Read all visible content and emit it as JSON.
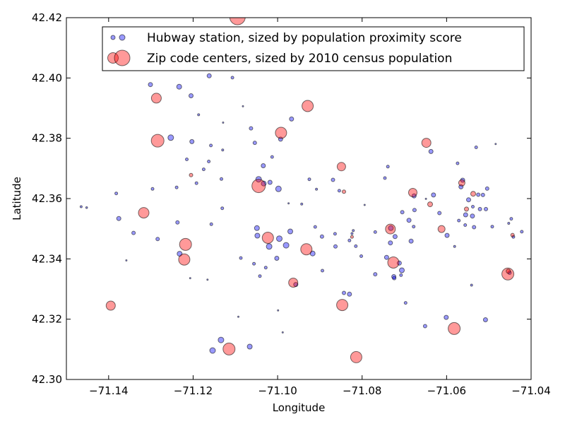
{
  "chart_data": {
    "type": "scatter",
    "xlabel": "Longitude",
    "ylabel": "Latitude",
    "xlim": [
      -71.15,
      -71.04
    ],
    "ylim": [
      42.3,
      42.42
    ],
    "grid": false,
    "legend_position": "top-right",
    "x_ticks": [
      "−71.14",
      "−71.12",
      "−71.10",
      "−71.08",
      "−71.06",
      "−71.04"
    ],
    "x_tick_values": [
      -71.14,
      -71.12,
      -71.1,
      -71.08,
      -71.06,
      -71.04
    ],
    "y_ticks": [
      "42.30",
      "42.32",
      "42.34",
      "42.36",
      "42.38",
      "42.40",
      "42.42"
    ],
    "y_tick_values": [
      42.3,
      42.32,
      42.34,
      42.36,
      42.38,
      42.4,
      42.42
    ],
    "series": [
      {
        "name": "Hubway station, sized by population proximity score",
        "color": "#0000ff",
        "points": [
          [
            -71.1465,
            42.3573,
            1.5
          ],
          [
            -71.1452,
            42.357,
            1.3
          ],
          [
            -71.1382,
            42.3617,
            2
          ],
          [
            -71.1376,
            42.3534,
            3
          ],
          [
            -71.1358,
            42.3395,
            1
          ],
          [
            -71.1341,
            42.3486,
            2.5
          ],
          [
            -71.1301,
            42.3978,
            3
          ],
          [
            -71.1296,
            42.3632,
            2
          ],
          [
            -71.1284,
            42.3466,
            2.5
          ],
          [
            -71.1268,
            42.4034,
            3
          ],
          [
            -71.1253,
            42.3802,
            4
          ],
          [
            -71.1239,
            42.3637,
            2
          ],
          [
            -71.1237,
            42.3521,
            2.5
          ],
          [
            -71.1233,
            42.3971,
            3.5
          ],
          [
            -71.1232,
            42.3417,
            3.5
          ],
          [
            -71.1215,
            42.373,
            2
          ],
          [
            -71.1207,
            42.3336,
            1
          ],
          [
            -71.1205,
            42.3941,
            3
          ],
          [
            -71.1203,
            42.3789,
            3
          ],
          [
            -71.1192,
            42.3651,
            2
          ],
          [
            -71.1187,
            42.3878,
            1.5
          ],
          [
            -71.1175,
            42.3697,
            2
          ],
          [
            -71.1166,
            42.3331,
            1
          ],
          [
            -71.1163,
            42.3723,
            2
          ],
          [
            -71.1162,
            42.4007,
            3
          ],
          [
            -71.1158,
            42.3776,
            2
          ],
          [
            -71.1157,
            42.3515,
            2
          ],
          [
            -71.1154,
            42.3096,
            4
          ],
          [
            -71.1134,
            42.3131,
            4
          ],
          [
            -71.1133,
            42.3665,
            2
          ],
          [
            -71.1131,
            42.3568,
            2
          ],
          [
            -71.113,
            42.3761,
            1.5
          ],
          [
            -71.1129,
            42.3852,
            1
          ],
          [
            -71.1107,
            42.4001,
            2
          ],
          [
            -71.1093,
            42.3208,
            1
          ],
          [
            -71.1087,
            42.3403,
            2
          ],
          [
            -71.1082,
            42.3906,
            1
          ],
          [
            -71.1066,
            42.3109,
            3.5
          ],
          [
            -71.1063,
            42.3833,
            2.5
          ],
          [
            -71.1056,
            42.3384,
            2
          ],
          [
            -71.1054,
            42.3785,
            2.5
          ],
          [
            -71.1049,
            42.3502,
            3.5
          ],
          [
            -71.1048,
            42.3477,
            3.5
          ],
          [
            -71.1045,
            42.3664,
            4
          ],
          [
            -71.1042,
            42.3343,
            2
          ],
          [
            -71.1034,
            42.3709,
            3
          ],
          [
            -71.1033,
            42.365,
            3.5
          ],
          [
            -71.1028,
            42.3371,
            2
          ],
          [
            -71.102,
            42.3441,
            4
          ],
          [
            -71.1018,
            42.3654,
            3
          ],
          [
            -71.1013,
            42.3738,
            2
          ],
          [
            -71.1002,
            42.3402,
            3
          ],
          [
            -71.0999,
            42.3229,
            1
          ],
          [
            -71.0998,
            42.3632,
            4
          ],
          [
            -71.0996,
            42.3467,
            4
          ],
          [
            -71.0993,
            42.3797,
            3
          ],
          [
            -71.0988,
            42.3156,
            1
          ],
          [
            -71.098,
            42.3445,
            4
          ],
          [
            -71.0974,
            42.3584,
            1
          ],
          [
            -71.097,
            42.3491,
            3.5
          ],
          [
            -71.0967,
            42.3864,
            3
          ],
          [
            -71.0957,
            42.3315,
            3
          ],
          [
            -71.0943,
            42.3582,
            1.5
          ],
          [
            -71.0925,
            42.3664,
            2
          ],
          [
            -71.0917,
            42.3418,
            3.5
          ],
          [
            -71.0911,
            42.3506,
            2
          ],
          [
            -71.0908,
            42.3631,
            1.5
          ],
          [
            -71.0895,
            42.3474,
            2.5
          ],
          [
            -71.0894,
            42.3361,
            2
          ],
          [
            -71.0869,
            42.3662,
            2.5
          ],
          [
            -71.0864,
            42.3483,
            2
          ],
          [
            -71.0863,
            42.3441,
            2.5
          ],
          [
            -71.0854,
            42.3626,
            2
          ],
          [
            -71.0843,
            42.3287,
            2.5
          ],
          [
            -71.083,
            42.3283,
            3
          ],
          [
            -71.083,
            42.3461,
            2
          ],
          [
            -71.0824,
            42.3484,
            1.5
          ],
          [
            -71.0821,
            42.3494,
            1.5
          ],
          [
            -71.0815,
            42.3442,
            2
          ],
          [
            -71.0802,
            42.3409,
            2
          ],
          [
            -71.0794,
            42.3579,
            1
          ],
          [
            -71.0769,
            42.3349,
            2.5
          ],
          [
            -71.0769,
            42.3489,
            2
          ],
          [
            -71.0746,
            42.3668,
            2
          ],
          [
            -71.0742,
            42.3405,
            3
          ],
          [
            -71.0739,
            42.3706,
            2
          ],
          [
            -71.0733,
            42.3453,
            3
          ],
          [
            -71.0732,
            42.3502,
            3.5
          ],
          [
            -71.0725,
            42.3341,
            3
          ],
          [
            -71.0724,
            42.3336,
            2.5
          ],
          [
            -71.0722,
            42.3474,
            3
          ],
          [
            -71.0712,
            42.3386,
            3
          ],
          [
            -71.0708,
            42.3346,
            2
          ],
          [
            -71.0706,
            42.3362,
            3.5
          ],
          [
            -71.0705,
            42.3555,
            2.5
          ],
          [
            -71.0697,
            42.3254,
            2
          ],
          [
            -71.0689,
            42.3528,
            3
          ],
          [
            -71.0684,
            42.3459,
            3
          ],
          [
            -71.0678,
            42.3507,
            2
          ],
          [
            -71.0677,
            42.3609,
            3
          ],
          [
            -71.0676,
            42.3562,
            2.5
          ],
          [
            -71.0651,
            42.3177,
            2.5
          ],
          [
            -71.0649,
            42.3599,
            1
          ],
          [
            -71.0637,
            42.3756,
            3
          ],
          [
            -71.0631,
            42.3612,
            3
          ],
          [
            -71.0617,
            42.3552,
            2.5
          ],
          [
            -71.0601,
            42.3206,
            3
          ],
          [
            -71.0599,
            42.3478,
            3
          ],
          [
            -71.0581,
            42.3441,
            1.5
          ],
          [
            -71.0574,
            42.3717,
            2
          ],
          [
            -71.0571,
            42.3527,
            2
          ],
          [
            -71.0566,
            42.3639,
            3
          ],
          [
            -71.0562,
            42.3661,
            3
          ],
          [
            -71.0556,
            42.3512,
            2
          ],
          [
            -71.0555,
            42.3546,
            3
          ],
          [
            -71.0548,
            42.3596,
            3
          ],
          [
            -71.0541,
            42.3313,
            1.5
          ],
          [
            -71.0539,
            42.3542,
            3
          ],
          [
            -71.0538,
            42.3573,
            2
          ],
          [
            -71.0535,
            42.3505,
            2.5
          ],
          [
            -71.053,
            42.377,
            2
          ],
          [
            -71.0525,
            42.3613,
            2.5
          ],
          [
            -71.0521,
            42.3565,
            2.5
          ],
          [
            -71.0514,
            42.3612,
            2.5
          ],
          [
            -71.0507,
            42.3565,
            2.5
          ],
          [
            -71.0508,
            42.3198,
            3
          ],
          [
            -71.0504,
            42.3633,
            2.5
          ],
          [
            -71.0492,
            42.3507,
            2
          ],
          [
            -71.0484,
            42.3781,
            1
          ],
          [
            -71.0453,
            42.3518,
            1.5
          ],
          [
            -71.0451,
            42.3354,
            2.5
          ],
          [
            -71.0447,
            42.3533,
            2
          ],
          [
            -71.0442,
            42.3473,
            2
          ],
          [
            -71.0422,
            42.349,
            2
          ]
        ]
      },
      {
        "name": "Zip code centers, sized by 2010 census population",
        "color": "#ff0000",
        "points": [
          [
            -71.1395,
            42.3245,
            6.5
          ],
          [
            -71.1317,
            42.3553,
            7.5
          ],
          [
            -71.1287,
            42.3933,
            7
          ],
          [
            -71.1284,
            42.3792,
            9
          ],
          [
            -71.1221,
            42.3398,
            8
          ],
          [
            -71.1218,
            42.3448,
            8.5
          ],
          [
            -71.1205,
            42.3678,
            2.5
          ],
          [
            -71.1115,
            42.3101,
            8.5
          ],
          [
            -71.1095,
            42.4202,
            11
          ],
          [
            -71.1045,
            42.3642,
            9.5
          ],
          [
            -71.1023,
            42.347,
            8
          ],
          [
            -71.0992,
            42.3818,
            8
          ],
          [
            -71.0963,
            42.3321,
            6.5
          ],
          [
            -71.0932,
            42.3432,
            8
          ],
          [
            -71.0929,
            42.3907,
            8
          ],
          [
            -71.0849,
            42.3706,
            6
          ],
          [
            -71.0847,
            42.3247,
            8
          ],
          [
            -71.0843,
            42.3623,
            2.5
          ],
          [
            -71.0824,
            42.3473,
            2
          ],
          [
            -71.0814,
            42.3074,
            8
          ],
          [
            -71.0733,
            42.3499,
            7
          ],
          [
            -71.0726,
            42.3388,
            8
          ],
          [
            -71.068,
            42.362,
            6
          ],
          [
            -71.0648,
            42.3785,
            6.5
          ],
          [
            -71.0639,
            42.3581,
            3.5
          ],
          [
            -71.0612,
            42.3499,
            5
          ],
          [
            -71.0582,
            42.3169,
            8.5
          ],
          [
            -71.0564,
            42.3652,
            4.5
          ],
          [
            -71.0553,
            42.3565,
            3
          ],
          [
            -71.0537,
            42.3616,
            3.5
          ],
          [
            -71.0455,
            42.335,
            8.5
          ],
          [
            -71.0444,
            42.3479,
            2.5
          ],
          [
            -71.0454,
            42.3359,
            3
          ]
        ]
      }
    ]
  }
}
